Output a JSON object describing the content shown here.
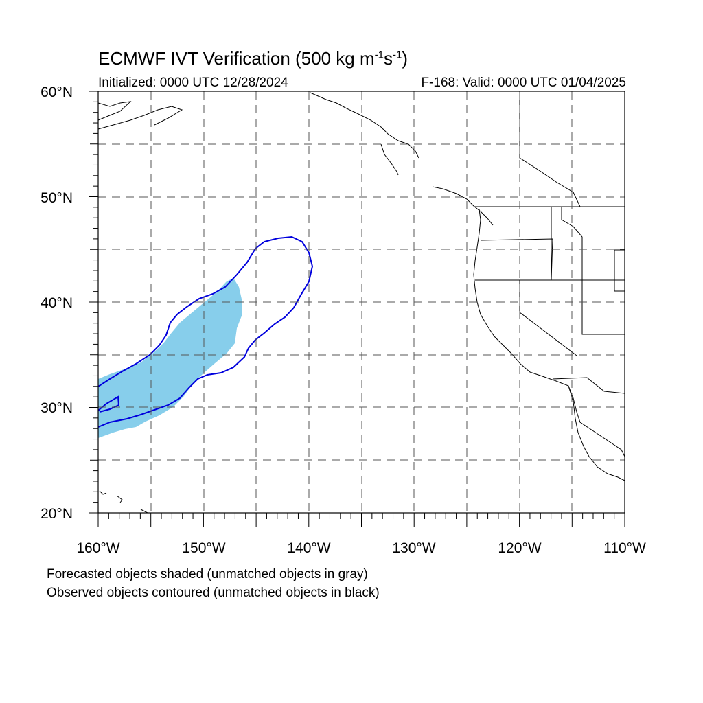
{
  "title": {
    "main": "ECMWF IVT Verification (500 kg m",
    "sup1": "-1",
    "mid": "s",
    "sup2": "-1",
    "end": ")"
  },
  "subtitle_left": "Initialized: 0000 UTC 12/28/2024",
  "subtitle_right": "F-168: Valid: 0000 UTC 01/04/2025",
  "lat_labels": [
    "60°N",
    "50°N",
    "40°N",
    "30°N",
    "20°N"
  ],
  "lon_labels": [
    "160°W",
    "150°W",
    "140°W",
    "130°W",
    "120°W",
    "110°W"
  ],
  "caption": {
    "line1": "Forecasted objects shaded (unmatched objects in gray)",
    "line2": "Observed objects contoured (unmatched objects in black)"
  },
  "colors": {
    "forecast_fill": "#87ceeb",
    "observed_contour": "#0000dd",
    "coastline": "#000000",
    "grid": "#555555"
  }
}
